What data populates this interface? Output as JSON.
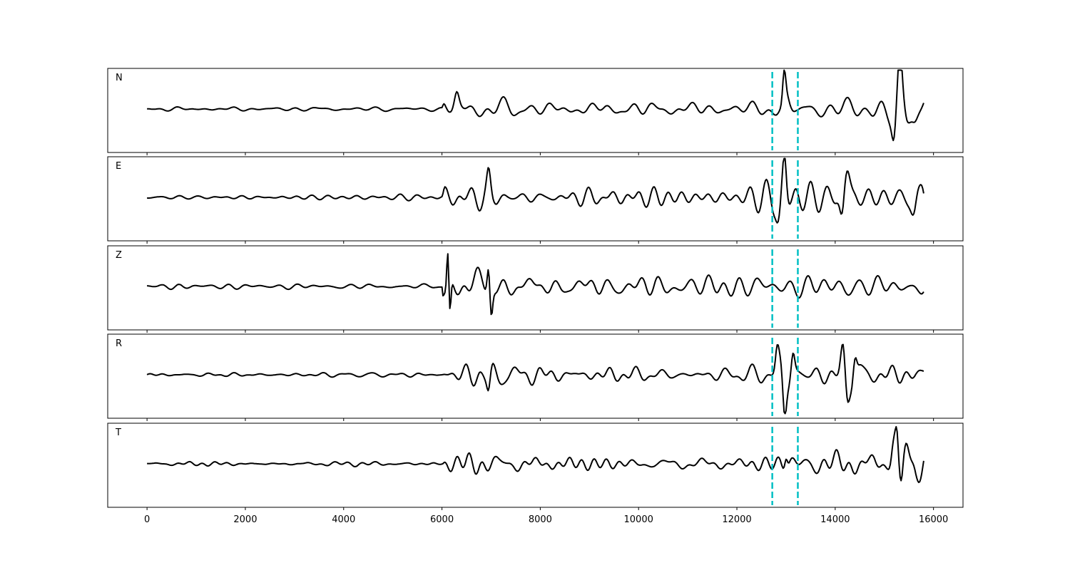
{
  "chart_data": {
    "type": "line",
    "title": "",
    "xlabel": "",
    "ylabel": "",
    "xlim": [
      -800,
      16600
    ],
    "xticks": [
      0,
      2000,
      4000,
      6000,
      8000,
      10000,
      12000,
      14000,
      16000
    ],
    "xtick_labels": [
      "0",
      "2000",
      "4000",
      "6000",
      "8000",
      "10000",
      "12000",
      "14000",
      "16000"
    ],
    "sample_count": 15800,
    "grid": false,
    "legend": "none",
    "trace_color": "#000000",
    "marker_color": "#00bfc4",
    "vertical_markers": [
      12720,
      13240
    ],
    "panels": [
      {
        "name": "N",
        "envelope": [
          [
            0,
            0.04
          ],
          [
            6000,
            0.05
          ],
          [
            6050,
            0.3
          ],
          [
            6500,
            0.3
          ],
          [
            8000,
            0.15
          ],
          [
            12000,
            0.15
          ],
          [
            12900,
            0.2
          ],
          [
            13000,
            0.5
          ],
          [
            13200,
            0.2
          ],
          [
            14700,
            0.25
          ],
          [
            15000,
            0.5
          ],
          [
            15200,
            0.9
          ],
          [
            15800,
            0.6
          ]
        ],
        "events": [
          [
            6300,
            0.35,
            60
          ],
          [
            12960,
            0.7,
            40
          ],
          [
            15200,
            -0.9,
            60
          ],
          [
            15320,
            0.9,
            60
          ],
          [
            15460,
            -0.55,
            90
          ],
          [
            15700,
            0.5,
            90
          ]
        ]
      },
      {
        "name": "E",
        "envelope": [
          [
            0,
            0.04
          ],
          [
            6000,
            0.05
          ],
          [
            6050,
            0.3
          ],
          [
            7500,
            0.3
          ],
          [
            8000,
            0.2
          ],
          [
            12000,
            0.15
          ],
          [
            12800,
            0.3
          ],
          [
            13200,
            0.4
          ],
          [
            13800,
            0.3
          ],
          [
            15800,
            0.35
          ]
        ],
        "events": [
          [
            6950,
            0.5,
            50
          ],
          [
            12970,
            1.0,
            50
          ],
          [
            12850,
            -0.6,
            60
          ],
          [
            14240,
            0.75,
            80
          ],
          [
            14140,
            -0.6,
            60
          ],
          [
            15600,
            -0.45,
            70
          ],
          [
            15780,
            0.2,
            60
          ]
        ]
      },
      {
        "name": "Z",
        "envelope": [
          [
            0,
            0.05
          ],
          [
            6000,
            0.06
          ],
          [
            6020,
            0.9
          ],
          [
            6500,
            0.6
          ],
          [
            7000,
            0.45
          ],
          [
            8000,
            0.25
          ],
          [
            15800,
            0.2
          ]
        ],
        "events": [
          [
            6120,
            1.0,
            30
          ],
          [
            6160,
            -0.9,
            30
          ],
          [
            6950,
            0.75,
            40
          ],
          [
            7000,
            -0.75,
            40
          ]
        ]
      },
      {
        "name": "R",
        "envelope": [
          [
            0,
            0.04
          ],
          [
            6000,
            0.05
          ],
          [
            6050,
            0.3
          ],
          [
            7000,
            0.35
          ],
          [
            8000,
            0.2
          ],
          [
            12000,
            0.15
          ],
          [
            12700,
            0.2
          ],
          [
            12900,
            0.5
          ],
          [
            13200,
            0.3
          ],
          [
            14500,
            0.35
          ],
          [
            15800,
            0.25
          ]
        ],
        "events": [
          [
            12820,
            0.55,
            50
          ],
          [
            12970,
            -1.0,
            50
          ],
          [
            13140,
            0.6,
            50
          ],
          [
            14160,
            0.65,
            60
          ],
          [
            14240,
            -0.7,
            60
          ],
          [
            14400,
            0.6,
            50
          ],
          [
            6950,
            -0.5,
            50
          ]
        ]
      },
      {
        "name": "T",
        "envelope": [
          [
            0,
            0.04
          ],
          [
            6000,
            0.05
          ],
          [
            6050,
            0.25
          ],
          [
            6500,
            0.25
          ],
          [
            8000,
            0.15
          ],
          [
            12000,
            0.15
          ],
          [
            12800,
            0.25
          ],
          [
            13200,
            0.25
          ],
          [
            14700,
            0.25
          ],
          [
            15000,
            0.4
          ],
          [
            15800,
            0.3
          ]
        ],
        "events": [
          [
            13000,
            0.35,
            40
          ],
          [
            15180,
            0.6,
            50
          ],
          [
            15250,
            1.0,
            50
          ],
          [
            15340,
            -0.8,
            60
          ],
          [
            15460,
            0.7,
            80
          ],
          [
            15650,
            -0.45,
            80
          ],
          [
            15800,
            0.1,
            60
          ]
        ]
      }
    ]
  }
}
